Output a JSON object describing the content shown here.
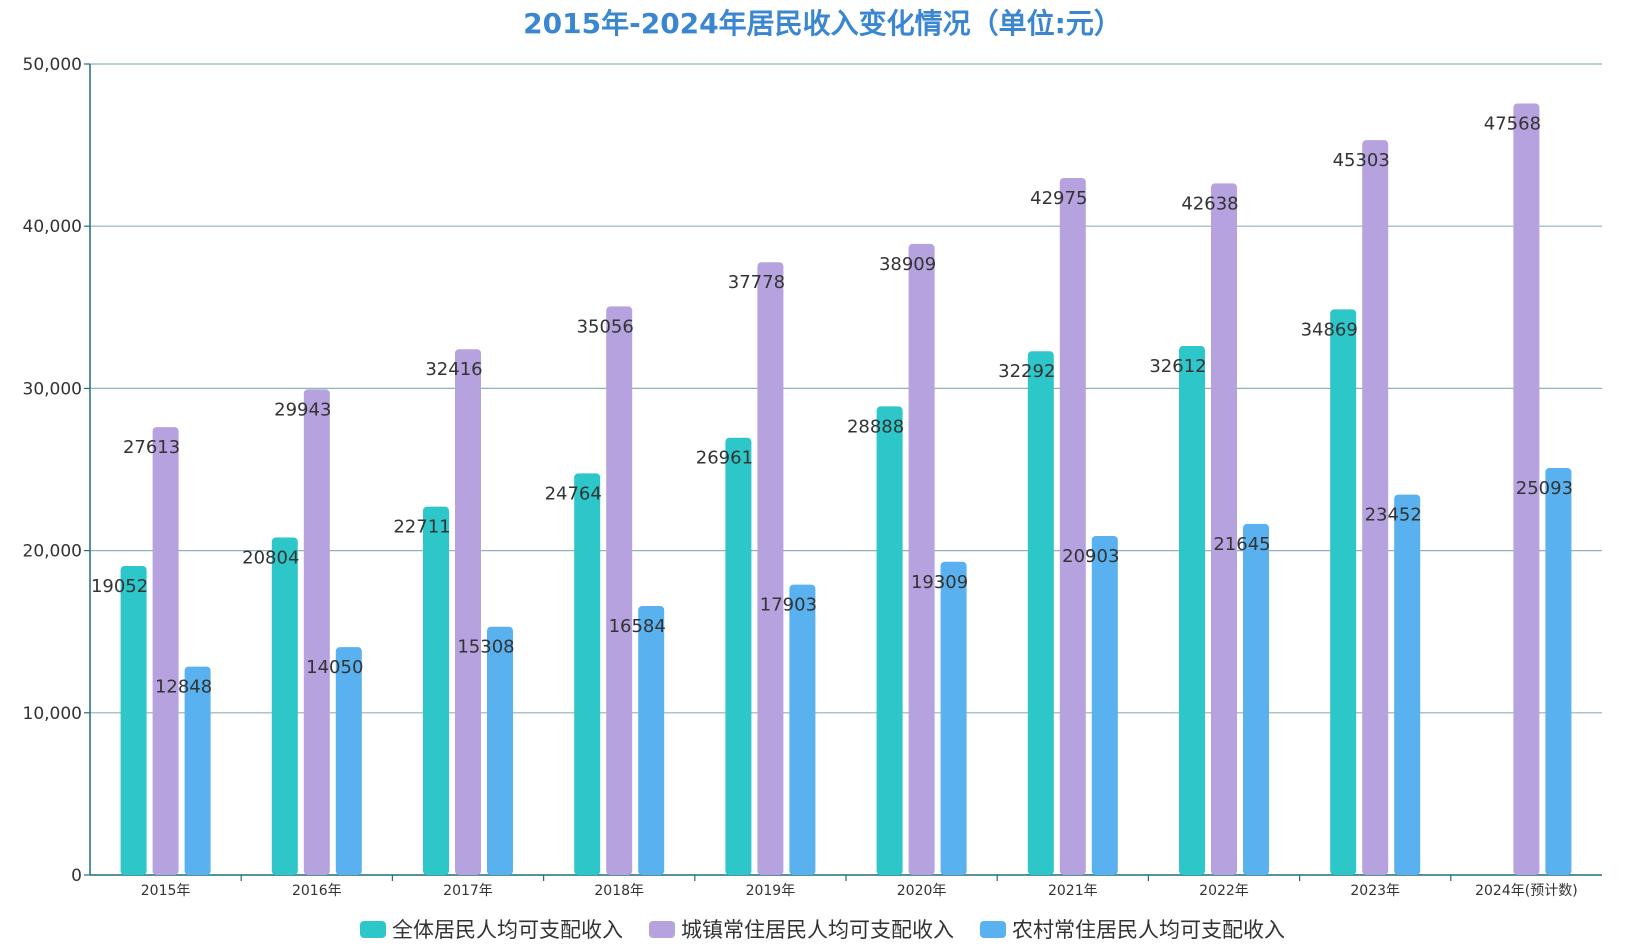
{
  "chart_data": {
    "type": "bar",
    "title": "2015年-2024年居民收入变化情况（单位:元）",
    "categories": [
      "2015年",
      "2016年",
      "2017年",
      "2018年",
      "2019年",
      "2020年",
      "2021年",
      "2022年",
      "2023年",
      "2024年(预计数)"
    ],
    "series": [
      {
        "name": "全体居民人均可支配收入",
        "color": "#2ec7c9",
        "values": [
          19052,
          20804,
          22711,
          24764,
          26961,
          28888,
          32292,
          32612,
          34869,
          null
        ]
      },
      {
        "name": "城镇常住居民人均可支配收入",
        "color": "#b6a2de",
        "values": [
          27613,
          29943,
          32416,
          35056,
          37778,
          38909,
          42975,
          42638,
          45303,
          47568
        ]
      },
      {
        "name": "农村常住居民人均可支配收入",
        "color": "#5ab1ef",
        "values": [
          12848,
          14050,
          15308,
          16584,
          17903,
          19309,
          20903,
          21645,
          23452,
          25093
        ]
      }
    ],
    "ylim": [
      0,
      50000
    ],
    "yticks": [
      0,
      10000,
      20000,
      30000,
      40000,
      50000
    ],
    "ytick_labels": [
      "0",
      "10,000",
      "20,000",
      "30,000",
      "40,000",
      "50,000"
    ],
    "grid": true,
    "legend_position": "bottom-center",
    "colors": {
      "axis": "#1f6f7a",
      "grid": "#8fb3b8",
      "title": "#3a86d1",
      "label": "#333333"
    }
  }
}
